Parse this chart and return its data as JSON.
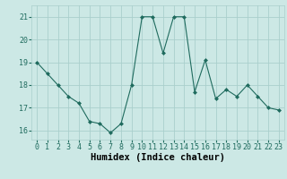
{
  "x": [
    0,
    1,
    2,
    3,
    4,
    5,
    6,
    7,
    8,
    9,
    10,
    11,
    12,
    13,
    14,
    15,
    16,
    17,
    18,
    19,
    20,
    21,
    22,
    23
  ],
  "y": [
    19.0,
    18.5,
    18.0,
    17.5,
    17.2,
    16.4,
    16.3,
    15.9,
    16.3,
    18.0,
    21.0,
    21.0,
    19.4,
    21.0,
    21.0,
    17.7,
    19.1,
    17.4,
    17.8,
    17.5,
    18.0,
    17.5,
    17.0,
    16.9
  ],
  "xlabel": "Humidex (Indice chaleur)",
  "xlim_min": -0.5,
  "xlim_max": 23.5,
  "ylim_min": 15.6,
  "ylim_max": 21.5,
  "yticks": [
    16,
    17,
    18,
    19,
    20,
    21
  ],
  "xticks": [
    0,
    1,
    2,
    3,
    4,
    5,
    6,
    7,
    8,
    9,
    10,
    11,
    12,
    13,
    14,
    15,
    16,
    17,
    18,
    19,
    20,
    21,
    22,
    23
  ],
  "line_color": "#1f6b5e",
  "marker": "D",
  "marker_size": 2,
  "bg_color": "#cce8e5",
  "grid_color": "#aacfcc",
  "tick_fontsize": 6,
  "xlabel_fontsize": 7.5
}
